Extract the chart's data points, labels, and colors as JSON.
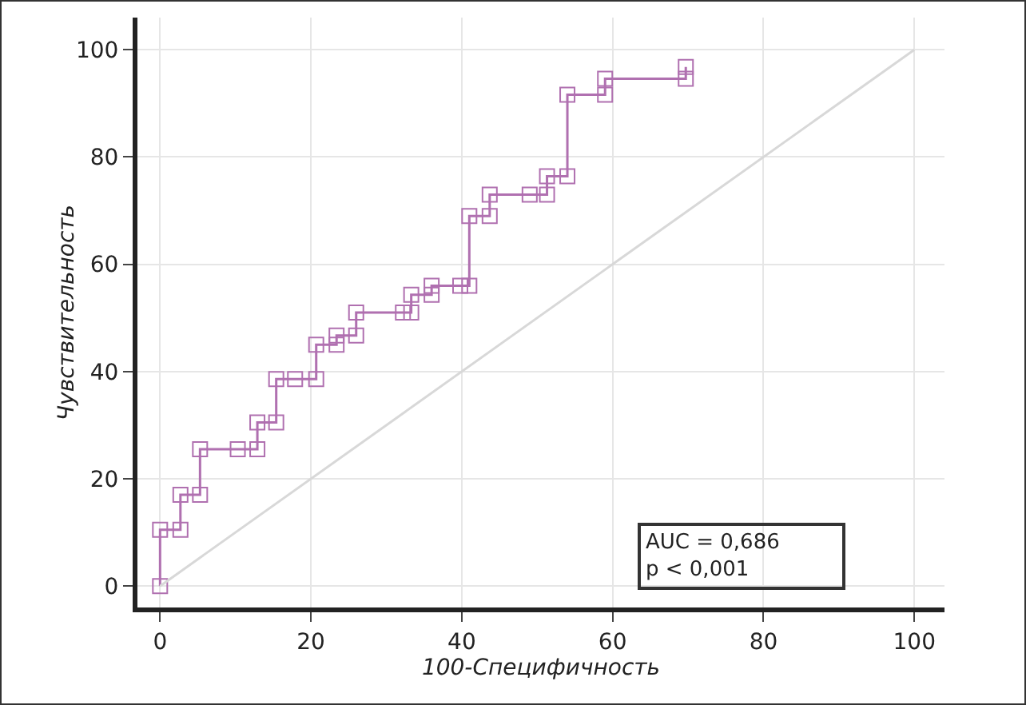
{
  "chart_data": {
    "type": "line",
    "xlabel": "100-Специфичность",
    "ylabel": "Чувствительность",
    "series": [
      {
        "color": "#b070b0",
        "marker": "square",
        "x": [
          0,
          0,
          2.7,
          2.7,
          5.3,
          5.3,
          10.3,
          12.9,
          12.9,
          15.4,
          15.4,
          17.9,
          20.7,
          20.7,
          23.4,
          23.4,
          26,
          26,
          32.2,
          33.3,
          33.3,
          36,
          36,
          39.8,
          41,
          41,
          43.7,
          43.7,
          49,
          51.3,
          51.3,
          54,
          54,
          59,
          59,
          69.7,
          69.7
        ],
        "values": [
          0,
          10.5,
          10.5,
          17,
          17,
          25.5,
          25.5,
          25.5,
          30.5,
          30.5,
          38.6,
          38.6,
          38.6,
          45,
          45,
          46.7,
          46.7,
          51,
          51,
          51,
          54.3,
          54.3,
          56,
          56,
          56,
          69,
          69,
          73,
          73,
          73,
          76.4,
          76.4,
          91.6,
          91.6,
          94.6,
          94.6,
          96.8
        ]
      },
      {
        "color": "#d8d8d8",
        "marker": "none",
        "x": [
          0,
          100
        ],
        "values": [
          0,
          100
        ]
      }
    ],
    "xlim": [
      -3,
      104
    ],
    "ylim": [
      -4,
      106
    ],
    "xticks": [
      0,
      20,
      40,
      60,
      80,
      100
    ],
    "yticks": [
      0,
      20,
      40,
      60,
      80,
      100
    ],
    "grid": true,
    "annotations": [
      "AUC = 0,686\np < 0,001"
    ]
  }
}
